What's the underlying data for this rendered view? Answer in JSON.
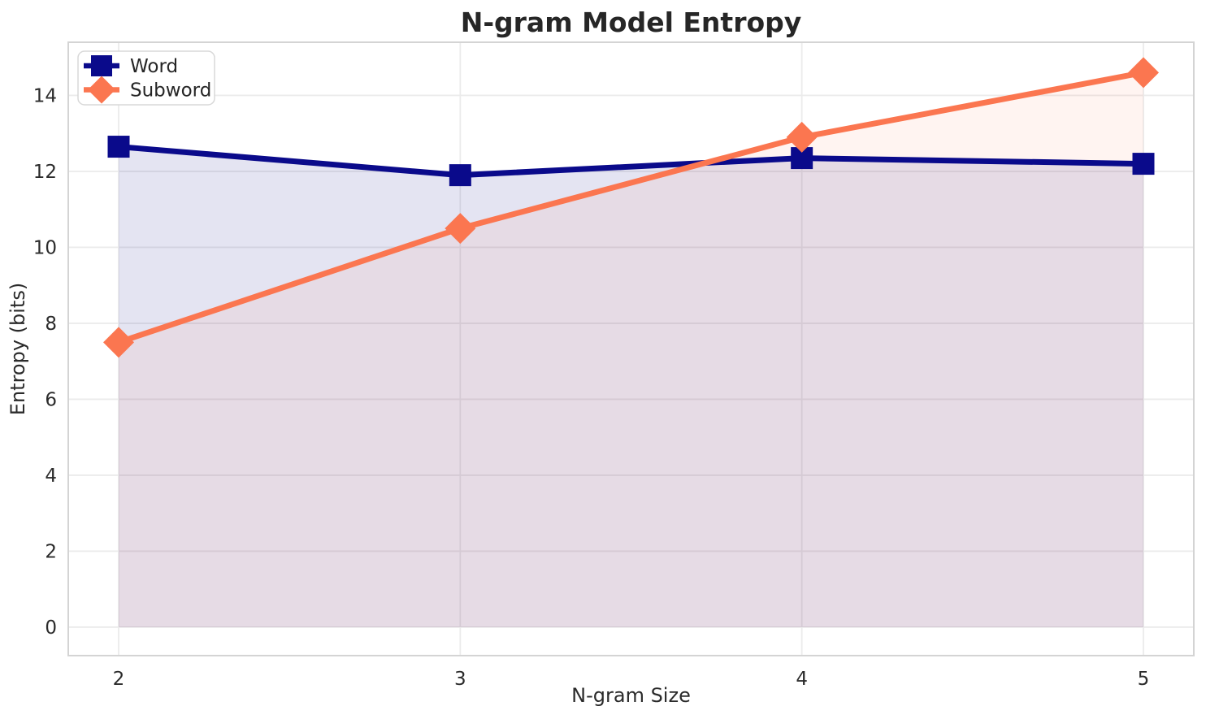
{
  "chart_data": {
    "type": "line",
    "title": "N-gram Model Entropy",
    "xlabel": "N-gram Size",
    "ylabel": "Entropy (bits)",
    "x": [
      2,
      3,
      4,
      5
    ],
    "series": [
      {
        "name": "Word",
        "values": [
          12.65,
          11.9,
          12.35,
          12.2
        ],
        "color": "#0a0a8b",
        "marker": "square",
        "fill_opacity": 0.11
      },
      {
        "name": "Subword",
        "values": [
          7.5,
          10.5,
          12.9,
          14.6
        ],
        "color": "#fb7650",
        "marker": "diamond",
        "fill_opacity": 0.08
      }
    ],
    "xticks": [
      "2",
      "3",
      "4",
      "5"
    ],
    "xtick_values": [
      2,
      3,
      4,
      5
    ],
    "yticks": [
      "0",
      "2",
      "4",
      "6",
      "8",
      "10",
      "12",
      "14"
    ],
    "ytick_values": [
      0,
      2,
      4,
      6,
      8,
      10,
      12,
      14
    ],
    "xlim": [
      1.8525,
      5.1475
    ],
    "ylim": [
      -0.75,
      15.4
    ],
    "grid": true,
    "area_fill_to": 0,
    "legend_position": "upper left",
    "colors": {
      "grid": "#ebebeb",
      "spine": "#d4d4d4",
      "legend_border": "#d8d8d8",
      "legend_bg": "#ffffff"
    }
  }
}
